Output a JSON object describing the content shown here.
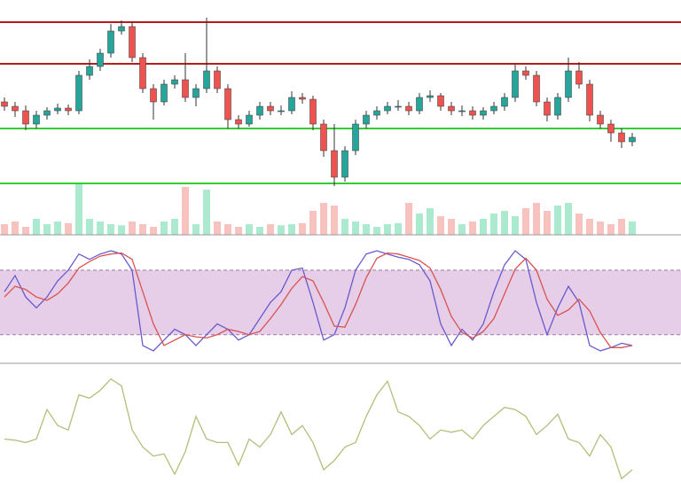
{
  "chart_data": [
    {
      "type": "candlestick",
      "up_color": "#26a69a",
      "down_color": "#ef5350",
      "volume_up_color": "#9ee6c8",
      "volume_down_color": "#f7b8b4",
      "ylim": [
        0,
        265
      ],
      "volume_ylim": [
        0,
        100
      ],
      "resistance": [
        240,
        193
      ],
      "resistance_color": "#b71c1c",
      "support": [
        120,
        58
      ],
      "support_color": "#33cc33",
      "open": [
        150,
        145,
        140,
        125,
        135,
        140,
        143,
        140,
        180,
        190,
        205,
        230,
        235,
        200,
        165,
        150,
        170,
        175,
        155,
        165,
        185,
        165,
        130,
        125,
        135,
        145,
        140,
        140,
        155,
        153,
        125,
        95,
        65,
        95,
        125,
        135,
        140,
        145,
        145,
        140,
        155,
        157,
        145,
        140,
        140,
        135,
        140,
        145,
        155,
        185,
        180,
        150,
        135,
        155,
        185,
        170,
        135,
        125,
        115,
        105
      ],
      "high": [
        155,
        150,
        146,
        140,
        144,
        148,
        147,
        185,
        198,
        210,
        238,
        242,
        240,
        205,
        170,
        175,
        180,
        205,
        170,
        245,
        190,
        170,
        135,
        140,
        150,
        150,
        146,
        162,
        160,
        157,
        130,
        125,
        100,
        130,
        140,
        145,
        150,
        152,
        150,
        160,
        163,
        160,
        150,
        146,
        145,
        144,
        150,
        160,
        192,
        190,
        185,
        155,
        160,
        200,
        195,
        175,
        140,
        130,
        120,
        115
      ],
      "low": [
        140,
        133,
        118,
        120,
        130,
        136,
        135,
        136,
        175,
        185,
        200,
        226,
        195,
        160,
        130,
        146,
        165,
        150,
        145,
        160,
        160,
        120,
        120,
        122,
        130,
        135,
        135,
        136,
        148,
        118,
        88,
        55,
        60,
        90,
        120,
        130,
        136,
        140,
        135,
        136,
        150,
        140,
        135,
        134,
        130,
        130,
        136,
        140,
        150,
        175,
        145,
        128,
        130,
        150,
        165,
        128,
        120,
        105,
        98,
        100
      ],
      "close": [
        145,
        140,
        125,
        135,
        140,
        143,
        140,
        180,
        190,
        205,
        230,
        235,
        200,
        165,
        150,
        170,
        175,
        155,
        165,
        185,
        165,
        130,
        125,
        135,
        145,
        140,
        140,
        155,
        153,
        125,
        95,
        65,
        95,
        125,
        135,
        140,
        145,
        145,
        140,
        155,
        157,
        145,
        140,
        140,
        135,
        140,
        145,
        155,
        185,
        180,
        150,
        135,
        155,
        185,
        170,
        135,
        125,
        115,
        105,
        110
      ],
      "volume": [
        20,
        25,
        15,
        30,
        20,
        25,
        22,
        95,
        30,
        25,
        20,
        18,
        25,
        20,
        15,
        25,
        30,
        90,
        20,
        85,
        25,
        20,
        15,
        20,
        15,
        20,
        18,
        20,
        22,
        45,
        60,
        55,
        30,
        25,
        20,
        15,
        20,
        22,
        60,
        40,
        50,
        35,
        30,
        20,
        25,
        30,
        40,
        45,
        35,
        50,
        60,
        45,
        55,
        60,
        40,
        30,
        25,
        20,
        30,
        25
      ]
    },
    {
      "type": "line",
      "ylim": [
        0,
        100
      ],
      "band": [
        20,
        80
      ],
      "band_color": "#e6cde8",
      "series": [
        {
          "color": "#6a5acd",
          "values": [
            60,
            75,
            55,
            45,
            55,
            70,
            80,
            95,
            90,
            95,
            98,
            95,
            80,
            10,
            5,
            15,
            25,
            20,
            10,
            20,
            30,
            25,
            15,
            20,
            35,
            50,
            60,
            80,
            82,
            50,
            15,
            20,
            45,
            80,
            95,
            98,
            95,
            92,
            90,
            85,
            70,
            30,
            10,
            25,
            15,
            30,
            60,
            85,
            98,
            90,
            50,
            20,
            45,
            65,
            50,
            10,
            5,
            8,
            12,
            10
          ]
        },
        {
          "color": "#d9534f",
          "values": [
            55,
            65,
            62,
            55,
            52,
            58,
            68,
            82,
            88,
            93,
            95,
            96,
            90,
            60,
            30,
            10,
            15,
            20,
            18,
            17,
            20,
            25,
            23,
            20,
            23,
            35,
            48,
            63,
            74,
            70,
            50,
            28,
            27,
            48,
            73,
            91,
            96,
            95,
            92,
            89,
            82,
            62,
            37,
            22,
            17,
            23,
            35,
            58,
            81,
            91,
            80,
            53,
            38,
            43,
            53,
            42,
            22,
            8,
            8,
            10
          ]
        }
      ]
    },
    {
      "type": "line",
      "ylim": [
        0,
        100
      ],
      "series": [
        {
          "color": "#b5bd7a",
          "values": [
            41,
            40,
            38,
            41,
            67,
            53,
            49,
            80,
            77,
            84,
            94,
            88,
            49,
            34,
            26,
            28,
            10,
            30,
            61,
            41,
            38,
            38,
            18,
            41,
            34,
            45,
            65,
            45,
            53,
            38,
            14,
            22,
            34,
            38,
            61,
            80,
            92,
            65,
            61,
            53,
            41,
            49,
            47,
            49,
            41,
            53,
            61,
            69,
            67,
            61,
            45,
            53,
            63,
            41,
            38,
            26,
            45,
            34,
            6,
            14
          ]
        }
      ]
    }
  ]
}
